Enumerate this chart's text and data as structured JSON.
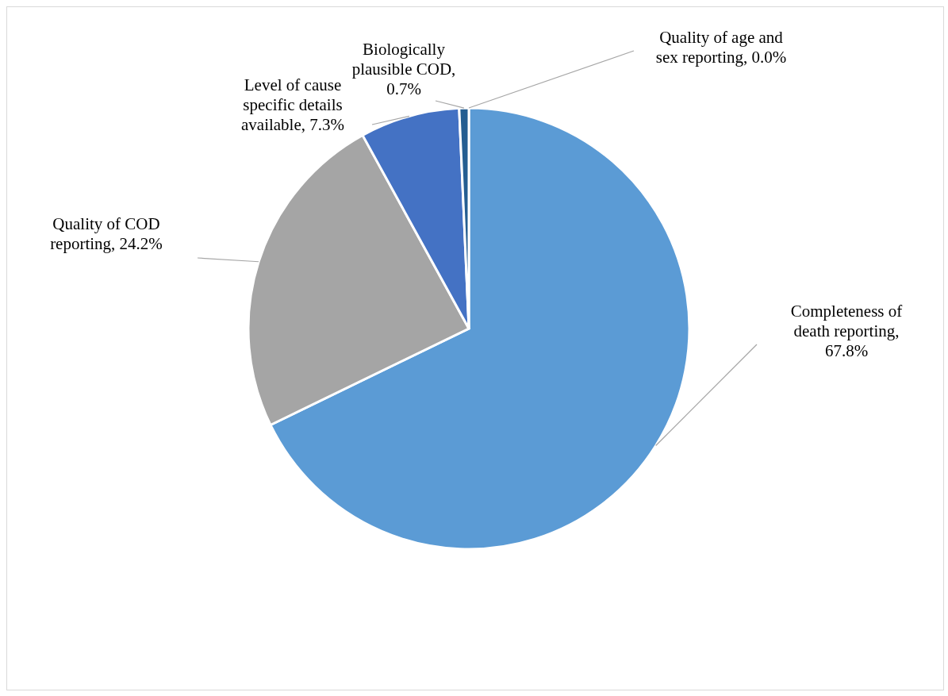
{
  "chart_data": {
    "type": "pie",
    "categories": [
      "Completeness of death reporting",
      "Quality of COD reporting",
      "Level of cause specific details available",
      "Biologically plausible COD",
      "Quality of age and sex reporting"
    ],
    "values": [
      67.8,
      24.2,
      7.3,
      0.7,
      0.0
    ],
    "value_labels": [
      ", 67.8%",
      ", 24.2%",
      ", 7.3%",
      ", 0.7%",
      ", 0.0%"
    ],
    "colors": [
      "#5b9bd5",
      "#a5a5a5",
      "#4472c4",
      "#255e91",
      "#636363"
    ],
    "legend": false
  }
}
